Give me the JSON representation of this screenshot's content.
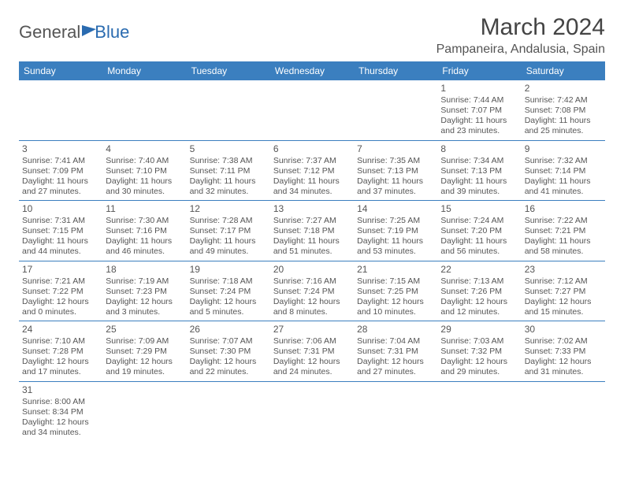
{
  "logo": {
    "text1": "General",
    "text2": "Blue"
  },
  "title": "March 2024",
  "location": "Pampaneira, Andalusia, Spain",
  "day_headers": [
    "Sunday",
    "Monday",
    "Tuesday",
    "Wednesday",
    "Thursday",
    "Friday",
    "Saturday"
  ],
  "colors": {
    "header_bg": "#3b7fbf",
    "header_text": "#ffffff",
    "border": "#3b7fbf",
    "text": "#555555",
    "logo_accent": "#2a6bb0"
  },
  "weeks": [
    [
      {},
      {},
      {},
      {},
      {},
      {
        "n": "1",
        "sr": "Sunrise: 7:44 AM",
        "ss": "Sunset: 7:07 PM",
        "dl": "Daylight: 11 hours and 23 minutes."
      },
      {
        "n": "2",
        "sr": "Sunrise: 7:42 AM",
        "ss": "Sunset: 7:08 PM",
        "dl": "Daylight: 11 hours and 25 minutes."
      }
    ],
    [
      {
        "n": "3",
        "sr": "Sunrise: 7:41 AM",
        "ss": "Sunset: 7:09 PM",
        "dl": "Daylight: 11 hours and 27 minutes."
      },
      {
        "n": "4",
        "sr": "Sunrise: 7:40 AM",
        "ss": "Sunset: 7:10 PM",
        "dl": "Daylight: 11 hours and 30 minutes."
      },
      {
        "n": "5",
        "sr": "Sunrise: 7:38 AM",
        "ss": "Sunset: 7:11 PM",
        "dl": "Daylight: 11 hours and 32 minutes."
      },
      {
        "n": "6",
        "sr": "Sunrise: 7:37 AM",
        "ss": "Sunset: 7:12 PM",
        "dl": "Daylight: 11 hours and 34 minutes."
      },
      {
        "n": "7",
        "sr": "Sunrise: 7:35 AM",
        "ss": "Sunset: 7:13 PM",
        "dl": "Daylight: 11 hours and 37 minutes."
      },
      {
        "n": "8",
        "sr": "Sunrise: 7:34 AM",
        "ss": "Sunset: 7:13 PM",
        "dl": "Daylight: 11 hours and 39 minutes."
      },
      {
        "n": "9",
        "sr": "Sunrise: 7:32 AM",
        "ss": "Sunset: 7:14 PM",
        "dl": "Daylight: 11 hours and 41 minutes."
      }
    ],
    [
      {
        "n": "10",
        "sr": "Sunrise: 7:31 AM",
        "ss": "Sunset: 7:15 PM",
        "dl": "Daylight: 11 hours and 44 minutes."
      },
      {
        "n": "11",
        "sr": "Sunrise: 7:30 AM",
        "ss": "Sunset: 7:16 PM",
        "dl": "Daylight: 11 hours and 46 minutes."
      },
      {
        "n": "12",
        "sr": "Sunrise: 7:28 AM",
        "ss": "Sunset: 7:17 PM",
        "dl": "Daylight: 11 hours and 49 minutes."
      },
      {
        "n": "13",
        "sr": "Sunrise: 7:27 AM",
        "ss": "Sunset: 7:18 PM",
        "dl": "Daylight: 11 hours and 51 minutes."
      },
      {
        "n": "14",
        "sr": "Sunrise: 7:25 AM",
        "ss": "Sunset: 7:19 PM",
        "dl": "Daylight: 11 hours and 53 minutes."
      },
      {
        "n": "15",
        "sr": "Sunrise: 7:24 AM",
        "ss": "Sunset: 7:20 PM",
        "dl": "Daylight: 11 hours and 56 minutes."
      },
      {
        "n": "16",
        "sr": "Sunrise: 7:22 AM",
        "ss": "Sunset: 7:21 PM",
        "dl": "Daylight: 11 hours and 58 minutes."
      }
    ],
    [
      {
        "n": "17",
        "sr": "Sunrise: 7:21 AM",
        "ss": "Sunset: 7:22 PM",
        "dl": "Daylight: 12 hours and 0 minutes."
      },
      {
        "n": "18",
        "sr": "Sunrise: 7:19 AM",
        "ss": "Sunset: 7:23 PM",
        "dl": "Daylight: 12 hours and 3 minutes."
      },
      {
        "n": "19",
        "sr": "Sunrise: 7:18 AM",
        "ss": "Sunset: 7:24 PM",
        "dl": "Daylight: 12 hours and 5 minutes."
      },
      {
        "n": "20",
        "sr": "Sunrise: 7:16 AM",
        "ss": "Sunset: 7:24 PM",
        "dl": "Daylight: 12 hours and 8 minutes."
      },
      {
        "n": "21",
        "sr": "Sunrise: 7:15 AM",
        "ss": "Sunset: 7:25 PM",
        "dl": "Daylight: 12 hours and 10 minutes."
      },
      {
        "n": "22",
        "sr": "Sunrise: 7:13 AM",
        "ss": "Sunset: 7:26 PM",
        "dl": "Daylight: 12 hours and 12 minutes."
      },
      {
        "n": "23",
        "sr": "Sunrise: 7:12 AM",
        "ss": "Sunset: 7:27 PM",
        "dl": "Daylight: 12 hours and 15 minutes."
      }
    ],
    [
      {
        "n": "24",
        "sr": "Sunrise: 7:10 AM",
        "ss": "Sunset: 7:28 PM",
        "dl": "Daylight: 12 hours and 17 minutes."
      },
      {
        "n": "25",
        "sr": "Sunrise: 7:09 AM",
        "ss": "Sunset: 7:29 PM",
        "dl": "Daylight: 12 hours and 19 minutes."
      },
      {
        "n": "26",
        "sr": "Sunrise: 7:07 AM",
        "ss": "Sunset: 7:30 PM",
        "dl": "Daylight: 12 hours and 22 minutes."
      },
      {
        "n": "27",
        "sr": "Sunrise: 7:06 AM",
        "ss": "Sunset: 7:31 PM",
        "dl": "Daylight: 12 hours and 24 minutes."
      },
      {
        "n": "28",
        "sr": "Sunrise: 7:04 AM",
        "ss": "Sunset: 7:31 PM",
        "dl": "Daylight: 12 hours and 27 minutes."
      },
      {
        "n": "29",
        "sr": "Sunrise: 7:03 AM",
        "ss": "Sunset: 7:32 PM",
        "dl": "Daylight: 12 hours and 29 minutes."
      },
      {
        "n": "30",
        "sr": "Sunrise: 7:02 AM",
        "ss": "Sunset: 7:33 PM",
        "dl": "Daylight: 12 hours and 31 minutes."
      }
    ],
    [
      {
        "n": "31",
        "sr": "Sunrise: 8:00 AM",
        "ss": "Sunset: 8:34 PM",
        "dl": "Daylight: 12 hours and 34 minutes."
      },
      {},
      {},
      {},
      {},
      {},
      {}
    ]
  ]
}
